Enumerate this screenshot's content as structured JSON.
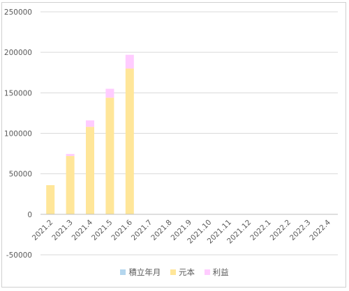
{
  "chart_data": {
    "type": "bar",
    "stacked": true,
    "categories": [
      "2021.2",
      "2021.3",
      "2021.4",
      "2021.5",
      "2021.6",
      "2021.7",
      "2021.8",
      "2021.9",
      "2021.10",
      "2021.11",
      "2021.12",
      "2022.1",
      "2022.2",
      "2022.3",
      "2022.4"
    ],
    "series": [
      {
        "name": "積立年月",
        "color": "#b4d6ee",
        "values": [
          0,
          0,
          0,
          0,
          0,
          0,
          0,
          0,
          0,
          0,
          0,
          0,
          0,
          0,
          0
        ]
      },
      {
        "name": "元本",
        "color": "#ffe699",
        "values": [
          36000,
          72000,
          108000,
          144000,
          180000,
          0,
          0,
          0,
          0,
          0,
          0,
          0,
          0,
          0,
          0
        ]
      },
      {
        "name": "利益",
        "color": "#ffccff",
        "values": [
          0,
          2500,
          8000,
          11000,
          17000,
          0,
          0,
          0,
          0,
          0,
          0,
          0,
          0,
          0,
          0
        ]
      }
    ],
    "ylim": [
      -50000,
      250000
    ],
    "yticks": [
      "-50000",
      "0",
      "50000",
      "100000",
      "150000",
      "200000",
      "250000"
    ],
    "grid": true,
    "legend_position": "bottom",
    "title": "",
    "xlabel": "",
    "ylabel": ""
  }
}
